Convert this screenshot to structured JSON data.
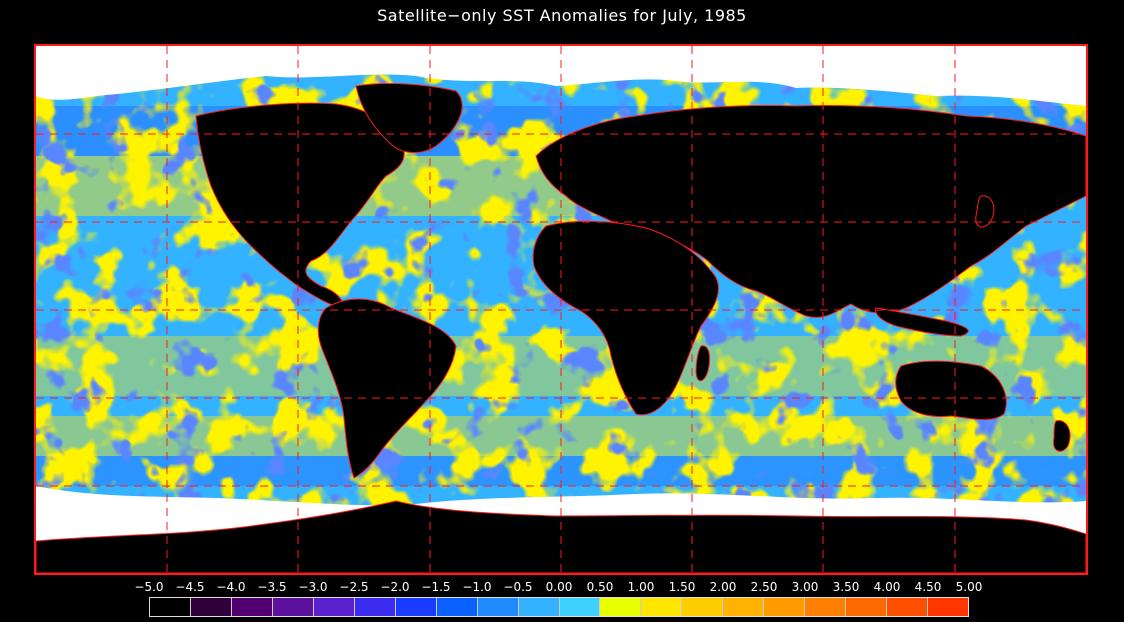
{
  "title": "Satellite−only SST Anomalies for July, 1985",
  "map": {
    "grid_lines": "dashed",
    "colors": {
      "land": "#000000",
      "ice_nodata": "#ffffff",
      "coastline": "#ff1a1a",
      "frame": "#ff1a1a",
      "ocean_base": "#33b3ff",
      "warm_anomaly": "#ffe600",
      "cold_anomaly": "#1a3cff"
    }
  },
  "colorbar": {
    "tick_labels": [
      "−5.0",
      "−4.5",
      "−4.0",
      "−3.5",
      "−3.0",
      "−2.5",
      "−2.0",
      "−1.5",
      "−1.0",
      "−0.5",
      "0.00",
      "0.50",
      "1.00",
      "1.50",
      "2.00",
      "2.50",
      "3.00",
      "3.50",
      "4.00",
      "4.50",
      "5.00"
    ],
    "swatch_colors": [
      "#000000",
      "#30003a",
      "#520070",
      "#5c109e",
      "#5a20cc",
      "#3c2cf0",
      "#1a3cff",
      "#0b61ff",
      "#1f8bff",
      "#33b3ff",
      "#3fd2ff",
      "#e8ff00",
      "#ffe600",
      "#ffcc00",
      "#ffb300",
      "#ff9a00",
      "#ff8000",
      "#ff6a00",
      "#ff5000",
      "#ff3600",
      "#ff1a00"
    ]
  }
}
